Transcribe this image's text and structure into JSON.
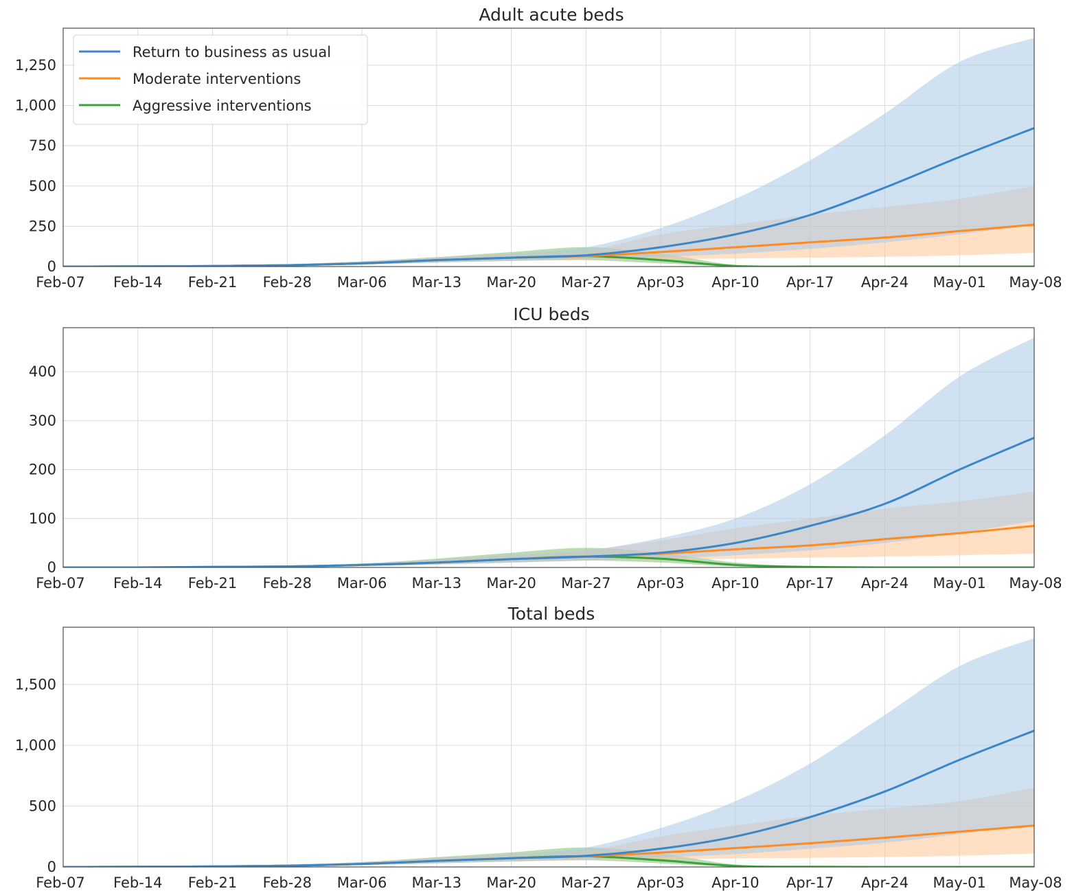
{
  "colors": {
    "return_to_business": "#3a86c8",
    "moderate": "#ff8a1f",
    "aggressive": "#39a23a",
    "band_return_to_business": "#a9c9e6",
    "band_moderate": "#ffc796",
    "band_aggressive": "#7fbf73"
  },
  "legend": {
    "entries": [
      {
        "label": "Return to business as usual",
        "color": "#3a86c8"
      },
      {
        "label": "Moderate interventions",
        "color": "#ff8a1f"
      },
      {
        "label": "Aggressive interventions",
        "color": "#39a23a"
      }
    ],
    "placement": "top-left",
    "in_chart": 0
  },
  "chart_data": [
    {
      "type": "line",
      "title": "Adult acute beds",
      "xlabel": "",
      "ylabel": "",
      "grid": true,
      "xlim": [
        "Feb-07",
        "May-08"
      ],
      "ylim": [
        0,
        1480
      ],
      "x_ticks": [
        "Feb-07",
        "Feb-14",
        "Feb-21",
        "Feb-28",
        "Mar-06",
        "Mar-13",
        "Mar-20",
        "Mar-27",
        "Apr-03",
        "Apr-10",
        "Apr-17",
        "Apr-24",
        "May-01",
        "May-08"
      ],
      "y_ticks": [
        0,
        250,
        500,
        750,
        1000,
        1250
      ],
      "y_tick_labels": [
        "0",
        "250",
        "500",
        "750",
        "1,000",
        "1,250"
      ],
      "x": [
        "Feb-07",
        "Feb-14",
        "Feb-21",
        "Feb-28",
        "Mar-06",
        "Mar-13",
        "Mar-20",
        "Mar-27",
        "Apr-03",
        "Apr-10",
        "Apr-17",
        "Apr-24",
        "May-01",
        "May-08"
      ],
      "series": [
        {
          "name": "Return to business as usual",
          "values": [
            0,
            1,
            3,
            8,
            20,
            40,
            55,
            70,
            120,
            200,
            320,
            490,
            680,
            860
          ],
          "lower": [
            0,
            0,
            1,
            4,
            12,
            25,
            35,
            45,
            60,
            80,
            110,
            150,
            200,
            260
          ],
          "upper": [
            0,
            3,
            7,
            15,
            32,
            58,
            80,
            120,
            240,
            420,
            660,
            950,
            1270,
            1420
          ]
        },
        {
          "name": "Moderate interventions",
          "values": [
            0,
            1,
            3,
            8,
            20,
            40,
            55,
            65,
            90,
            120,
            150,
            180,
            220,
            260
          ],
          "lower": [
            0,
            0,
            1,
            4,
            12,
            25,
            35,
            40,
            45,
            50,
            55,
            60,
            70,
            85
          ],
          "upper": [
            0,
            3,
            7,
            15,
            32,
            58,
            80,
            100,
            200,
            260,
            320,
            370,
            420,
            500
          ]
        },
        {
          "name": "Aggressive interventions",
          "values": [
            0,
            1,
            3,
            8,
            20,
            40,
            55,
            65,
            40,
            3,
            0,
            0,
            0,
            0
          ],
          "lower": [
            0,
            0,
            1,
            4,
            12,
            25,
            35,
            40,
            20,
            0,
            0,
            0,
            0,
            0
          ],
          "upper": [
            0,
            3,
            7,
            15,
            32,
            58,
            90,
            120,
            80,
            10,
            0,
            0,
            0,
            0
          ]
        }
      ]
    },
    {
      "type": "line",
      "title": "ICU beds",
      "xlabel": "",
      "ylabel": "",
      "grid": true,
      "xlim": [
        "Feb-07",
        "May-08"
      ],
      "ylim": [
        0,
        490
      ],
      "x_ticks": [
        "Feb-07",
        "Feb-14",
        "Feb-21",
        "Feb-28",
        "Mar-06",
        "Mar-13",
        "Mar-20",
        "Mar-27",
        "Apr-03",
        "Apr-10",
        "Apr-17",
        "Apr-24",
        "May-01",
        "May-08"
      ],
      "y_ticks": [
        0,
        100,
        200,
        300,
        400
      ],
      "y_tick_labels": [
        "0",
        "100",
        "200",
        "300",
        "400"
      ],
      "x": [
        "Feb-07",
        "Feb-14",
        "Feb-21",
        "Feb-28",
        "Mar-06",
        "Mar-13",
        "Mar-20",
        "Mar-27",
        "Apr-03",
        "Apr-10",
        "Apr-17",
        "Apr-24",
        "May-01",
        "May-08"
      ],
      "series": [
        {
          "name": "Return to business as usual",
          "values": [
            0,
            0,
            1,
            2,
            5,
            10,
            17,
            22,
            30,
            50,
            85,
            130,
            200,
            265
          ],
          "lower": [
            0,
            0,
            0,
            1,
            3,
            6,
            10,
            14,
            18,
            25,
            35,
            50,
            70,
            95
          ],
          "upper": [
            0,
            1,
            2,
            4,
            8,
            16,
            26,
            35,
            60,
            100,
            170,
            270,
            390,
            470
          ]
        },
        {
          "name": "Moderate interventions",
          "values": [
            0,
            0,
            1,
            2,
            5,
            10,
            17,
            22,
            28,
            37,
            45,
            58,
            70,
            85
          ],
          "lower": [
            0,
            0,
            0,
            1,
            3,
            6,
            10,
            14,
            16,
            18,
            20,
            22,
            25,
            28
          ],
          "upper": [
            0,
            1,
            2,
            4,
            8,
            16,
            26,
            35,
            55,
            80,
            100,
            120,
            135,
            155
          ]
        },
        {
          "name": "Aggressive interventions",
          "values": [
            0,
            0,
            1,
            2,
            5,
            10,
            17,
            22,
            18,
            5,
            1,
            0,
            0,
            0
          ],
          "lower": [
            0,
            0,
            0,
            1,
            3,
            6,
            10,
            14,
            10,
            2,
            0,
            0,
            0,
            0
          ],
          "upper": [
            0,
            1,
            2,
            4,
            8,
            18,
            30,
            40,
            30,
            10,
            2,
            0,
            0,
            0
          ]
        }
      ]
    },
    {
      "type": "line",
      "title": "Total beds",
      "xlabel": "",
      "ylabel": "",
      "grid": true,
      "xlim": [
        "Feb-07",
        "May-08"
      ],
      "ylim": [
        0,
        1970
      ],
      "x_ticks": [
        "Feb-07",
        "Feb-14",
        "Feb-21",
        "Feb-28",
        "Mar-06",
        "Mar-13",
        "Mar-20",
        "Mar-27",
        "Apr-03",
        "Apr-10",
        "Apr-17",
        "Apr-24",
        "May-01",
        "May-08"
      ],
      "y_ticks": [
        0,
        500,
        1000,
        1500
      ],
      "y_tick_labels": [
        "0",
        "500",
        "1,000",
        "1,500"
      ],
      "x": [
        "Feb-07",
        "Feb-14",
        "Feb-21",
        "Feb-28",
        "Mar-06",
        "Mar-13",
        "Mar-20",
        "Mar-27",
        "Apr-03",
        "Apr-10",
        "Apr-17",
        "Apr-24",
        "May-01",
        "May-08"
      ],
      "series": [
        {
          "name": "Return to business as usual",
          "values": [
            0,
            1,
            4,
            10,
            25,
            50,
            72,
            92,
            150,
            250,
            410,
            620,
            880,
            1120
          ],
          "lower": [
            0,
            0,
            1,
            5,
            15,
            30,
            45,
            60,
            80,
            105,
            150,
            200,
            270,
            350
          ],
          "upper": [
            0,
            4,
            9,
            20,
            40,
            75,
            105,
            160,
            320,
            540,
            850,
            1250,
            1650,
            1880
          ]
        },
        {
          "name": "Moderate interventions",
          "values": [
            0,
            1,
            4,
            10,
            25,
            50,
            72,
            88,
            118,
            155,
            195,
            240,
            290,
            340
          ],
          "lower": [
            0,
            0,
            1,
            5,
            15,
            30,
            45,
            55,
            62,
            70,
            75,
            82,
            92,
            110
          ],
          "upper": [
            0,
            4,
            9,
            20,
            40,
            75,
            105,
            135,
            250,
            340,
            420,
            480,
            540,
            650
          ]
        },
        {
          "name": "Aggressive interventions",
          "values": [
            0,
            1,
            4,
            10,
            25,
            50,
            72,
            88,
            55,
            8,
            1,
            0,
            0,
            0
          ],
          "lower": [
            0,
            0,
            1,
            5,
            15,
            30,
            45,
            55,
            30,
            2,
            0,
            0,
            0,
            0
          ],
          "upper": [
            0,
            4,
            9,
            20,
            40,
            80,
            120,
            160,
            110,
            20,
            2,
            0,
            0,
            0
          ]
        }
      ]
    }
  ]
}
